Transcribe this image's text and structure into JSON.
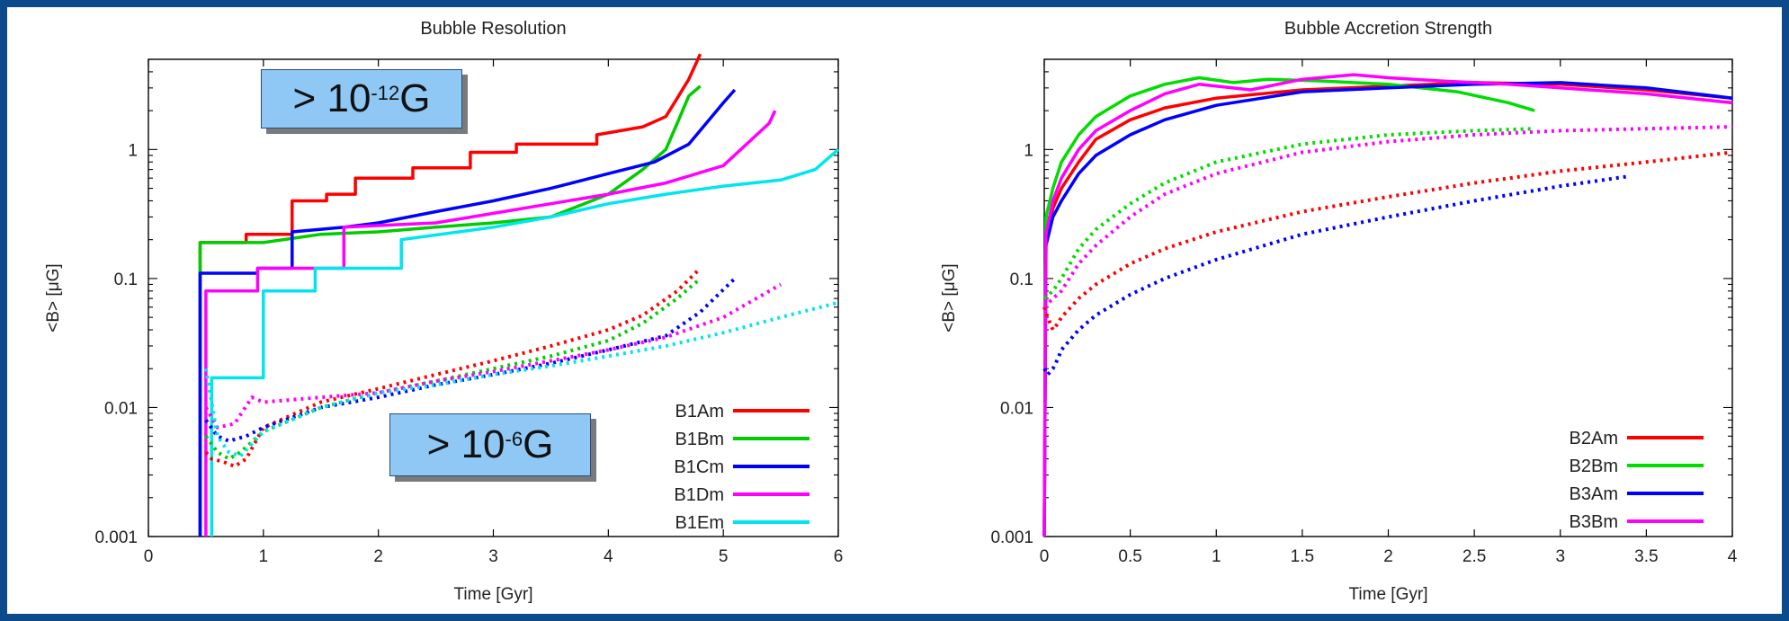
{
  "chart_data": [
    {
      "type": "line",
      "title": "Bubble Resolution",
      "xlabel": "Time [Gyr]",
      "ylabel": "<B> [μG]",
      "xlim": [
        0,
        6
      ],
      "ylim": [
        0.001,
        5
      ],
      "yscale": "log",
      "x_ticks": [
        0,
        1,
        2,
        3,
        4,
        5,
        6
      ],
      "y_ticks": [
        0.001,
        0.01,
        0.1,
        1
      ],
      "x_tick_labels": [
        "0",
        "1",
        "2",
        "3",
        "4",
        "5",
        "6"
      ],
      "y_tick_labels": [
        "0.001",
        "0.01",
        "0.1",
        "1"
      ],
      "legend_position": "bottom-right",
      "series": [
        {
          "name": "B1Am",
          "color": "#ff0000",
          "style": "solid",
          "x": [
            0.45,
            0.45,
            0.85,
            0.85,
            1.25,
            1.25,
            1.55,
            1.55,
            1.8,
            1.8,
            2.3,
            2.3,
            2.8,
            2.8,
            3.2,
            3.2,
            3.9,
            3.9,
            4.3,
            4.5,
            4.6,
            4.7,
            4.8
          ],
          "y": [
            0.0008,
            0.19,
            0.19,
            0.22,
            0.22,
            0.4,
            0.4,
            0.45,
            0.45,
            0.6,
            0.6,
            0.72,
            0.72,
            0.95,
            0.95,
            1.1,
            1.1,
            1.3,
            1.5,
            1.8,
            2.5,
            3.5,
            5.5
          ]
        },
        {
          "name": "B1Bm",
          "color": "#00cc00",
          "style": "solid",
          "x": [
            0.45,
            0.45,
            1.0,
            1.5,
            2.0,
            2.5,
            3.0,
            3.5,
            4.0,
            4.3,
            4.5,
            4.6,
            4.7,
            4.8
          ],
          "y": [
            0.0008,
            0.19,
            0.19,
            0.22,
            0.23,
            0.25,
            0.27,
            0.3,
            0.45,
            0.7,
            1.0,
            1.6,
            2.6,
            3.1
          ]
        },
        {
          "name": "B1Cm",
          "color": "#0000ff",
          "style": "solid",
          "x": [
            0.45,
            0.45,
            0.95,
            0.95,
            1.25,
            1.25,
            1.7,
            2.0,
            2.5,
            3.0,
            3.5,
            4.0,
            4.4,
            4.7,
            5.0,
            5.1
          ],
          "y": [
            0.0008,
            0.11,
            0.11,
            0.12,
            0.12,
            0.23,
            0.25,
            0.27,
            0.33,
            0.4,
            0.5,
            0.65,
            0.8,
            1.1,
            2.3,
            2.9
          ]
        },
        {
          "name": "B1Dm",
          "color": "#ff00ff",
          "style": "solid",
          "x": [
            0.5,
            0.5,
            0.95,
            0.95,
            1.25,
            1.25,
            1.7,
            1.7,
            2.5,
            3.0,
            3.5,
            4.0,
            4.5,
            5.0,
            5.4,
            5.45
          ],
          "y": [
            0.0008,
            0.08,
            0.08,
            0.12,
            0.12,
            0.12,
            0.12,
            0.25,
            0.27,
            0.32,
            0.38,
            0.45,
            0.55,
            0.75,
            1.6,
            2.0
          ]
        },
        {
          "name": "B1Em",
          "color": "#00e5ee",
          "style": "solid",
          "x": [
            0.55,
            0.55,
            1.0,
            1.0,
            1.45,
            1.45,
            2.2,
            2.2,
            3.0,
            3.5,
            4.0,
            4.5,
            5.0,
            5.5,
            5.8,
            6.0
          ],
          "y": [
            0.0008,
            0.017,
            0.017,
            0.08,
            0.08,
            0.12,
            0.12,
            0.2,
            0.25,
            0.3,
            0.38,
            0.45,
            0.52,
            0.58,
            0.7,
            1.0
          ]
        },
        {
          "name": "",
          "color": "#ff0000",
          "style": "dotted",
          "x": [
            0.5,
            0.55,
            0.65,
            0.75,
            0.85,
            1.0,
            1.5,
            2.0,
            2.5,
            3.0,
            3.5,
            4.0,
            4.3,
            4.6,
            4.8
          ],
          "y": [
            0.0045,
            0.004,
            0.0038,
            0.0035,
            0.004,
            0.007,
            0.011,
            0.014,
            0.018,
            0.023,
            0.03,
            0.04,
            0.052,
            0.08,
            0.12
          ]
        },
        {
          "name": "",
          "color": "#00cc00",
          "style": "dotted",
          "x": [
            0.5,
            0.6,
            0.7,
            0.8,
            1.0,
            1.5,
            2.0,
            2.5,
            3.0,
            3.5,
            4.0,
            4.3,
            4.6,
            4.8
          ],
          "y": [
            0.006,
            0.0045,
            0.004,
            0.0045,
            0.0065,
            0.01,
            0.013,
            0.016,
            0.02,
            0.025,
            0.033,
            0.045,
            0.07,
            0.1
          ]
        },
        {
          "name": "",
          "color": "#0000ff",
          "style": "dotted",
          "x": [
            0.5,
            0.6,
            0.7,
            0.85,
            1.0,
            1.5,
            2.0,
            2.5,
            3.0,
            3.5,
            4.0,
            4.5,
            4.8,
            5.1
          ],
          "y": [
            0.008,
            0.006,
            0.0055,
            0.006,
            0.007,
            0.01,
            0.012,
            0.015,
            0.018,
            0.022,
            0.028,
            0.036,
            0.055,
            0.1
          ]
        },
        {
          "name": "",
          "color": "#ff00ff",
          "style": "dotted",
          "x": [
            0.5,
            0.6,
            0.75,
            0.9,
            1.0,
            1.5,
            2.0,
            2.5,
            3.0,
            3.5,
            4.0,
            4.5,
            5.0,
            5.5
          ],
          "y": [
            0.01,
            0.007,
            0.0075,
            0.012,
            0.011,
            0.012,
            0.013,
            0.016,
            0.019,
            0.023,
            0.028,
            0.035,
            0.05,
            0.09
          ]
        },
        {
          "name": "",
          "color": "#00e5ee",
          "style": "dotted",
          "x": [
            0.5,
            0.6,
            0.7,
            0.8,
            1.0,
            1.5,
            2.0,
            2.5,
            3.0,
            3.5,
            4.0,
            4.5,
            5.0,
            5.5,
            6.0
          ],
          "y": [
            0.02,
            0.006,
            0.0045,
            0.0042,
            0.0065,
            0.01,
            0.013,
            0.015,
            0.018,
            0.021,
            0.025,
            0.03,
            0.038,
            0.05,
            0.065
          ]
        }
      ]
    },
    {
      "type": "line",
      "title": "Bubble Accretion Strength",
      "xlabel": "Time [Gyr]",
      "ylabel": "<B> [μG]",
      "xlim": [
        0,
        4
      ],
      "ylim": [
        0.001,
        5
      ],
      "yscale": "log",
      "x_ticks": [
        0,
        0.5,
        1,
        1.5,
        2,
        2.5,
        3,
        3.5,
        4
      ],
      "y_ticks": [
        0.001,
        0.01,
        0.1,
        1
      ],
      "x_tick_labels": [
        "0",
        "0.5",
        "1",
        "1.5",
        "2",
        "2.5",
        "3",
        "3.5",
        "4"
      ],
      "y_tick_labels": [
        "0.001",
        "0.01",
        "0.1",
        "1"
      ],
      "legend_position": "bottom-right",
      "series": [
        {
          "name": "B2Am",
          "color": "#ff0000",
          "style": "solid",
          "x": [
            0.0,
            0.01,
            0.05,
            0.1,
            0.2,
            0.3,
            0.5,
            0.7,
            1.0,
            1.5,
            2.0,
            2.5,
            3.0,
            3.5,
            4.0
          ],
          "y": [
            0.001,
            0.2,
            0.35,
            0.5,
            0.8,
            1.2,
            1.7,
            2.1,
            2.5,
            2.9,
            3.1,
            3.3,
            3.2,
            2.9,
            2.5
          ]
        },
        {
          "name": "B2Bm",
          "color": "#00dd00",
          "style": "solid",
          "x": [
            0.0,
            0.01,
            0.05,
            0.1,
            0.2,
            0.3,
            0.5,
            0.7,
            0.9,
            1.1,
            1.3,
            1.6,
            2.0,
            2.4,
            2.7,
            2.85
          ],
          "y": [
            0.001,
            0.3,
            0.5,
            0.8,
            1.3,
            1.8,
            2.6,
            3.2,
            3.6,
            3.3,
            3.5,
            3.4,
            3.2,
            2.8,
            2.3,
            2.0
          ]
        },
        {
          "name": "B3Am",
          "color": "#0000ff",
          "style": "solid",
          "x": [
            0.0,
            0.01,
            0.05,
            0.1,
            0.2,
            0.3,
            0.5,
            0.7,
            1.0,
            1.5,
            2.0,
            2.5,
            3.0,
            3.5,
            4.0
          ],
          "y": [
            0.001,
            0.18,
            0.3,
            0.4,
            0.65,
            0.9,
            1.3,
            1.7,
            2.2,
            2.8,
            3.0,
            3.2,
            3.3,
            3.0,
            2.5
          ]
        },
        {
          "name": "B3Bm",
          "color": "#ff00ff",
          "style": "solid",
          "x": [
            0.0,
            0.01,
            0.05,
            0.1,
            0.2,
            0.3,
            0.5,
            0.7,
            0.9,
            1.2,
            1.5,
            1.8,
            2.0,
            2.3,
            2.7,
            3.0,
            3.5,
            4.0
          ],
          "y": [
            0.001,
            0.22,
            0.4,
            0.6,
            1.0,
            1.4,
            2.0,
            2.7,
            3.2,
            2.9,
            3.5,
            3.8,
            3.6,
            3.4,
            3.2,
            3.0,
            2.7,
            2.3
          ]
        },
        {
          "name": "",
          "color": "#ff0000",
          "style": "dotted",
          "x": [
            0.0,
            0.02,
            0.05,
            0.08,
            0.1,
            0.2,
            0.3,
            0.5,
            0.7,
            1.0,
            1.5,
            2.0,
            2.5,
            3.0,
            3.5,
            4.0
          ],
          "y": [
            0.06,
            0.05,
            0.04,
            0.045,
            0.05,
            0.07,
            0.09,
            0.13,
            0.17,
            0.23,
            0.33,
            0.43,
            0.55,
            0.68,
            0.8,
            0.95
          ]
        },
        {
          "name": "",
          "color": "#00dd00",
          "style": "dotted",
          "x": [
            0.0,
            0.05,
            0.1,
            0.2,
            0.3,
            0.5,
            0.7,
            1.0,
            1.5,
            2.0,
            2.5,
            2.85
          ],
          "y": [
            0.07,
            0.08,
            0.1,
            0.17,
            0.24,
            0.38,
            0.55,
            0.8,
            1.1,
            1.3,
            1.4,
            1.45
          ]
        },
        {
          "name": "",
          "color": "#0000ff",
          "style": "dotted",
          "x": [
            0.0,
            0.02,
            0.05,
            0.08,
            0.1,
            0.2,
            0.3,
            0.5,
            0.7,
            1.0,
            1.5,
            2.0,
            2.5,
            3.0,
            3.4
          ],
          "y": [
            0.02,
            0.018,
            0.02,
            0.024,
            0.028,
            0.04,
            0.052,
            0.075,
            0.1,
            0.14,
            0.22,
            0.3,
            0.4,
            0.52,
            0.62
          ]
        },
        {
          "name": "",
          "color": "#ff00ff",
          "style": "dotted",
          "x": [
            0.0,
            0.05,
            0.1,
            0.2,
            0.3,
            0.5,
            0.7,
            1.0,
            1.5,
            2.0,
            2.5,
            3.0,
            3.5,
            4.0
          ],
          "y": [
            0.06,
            0.07,
            0.08,
            0.13,
            0.18,
            0.3,
            0.45,
            0.65,
            0.95,
            1.15,
            1.3,
            1.4,
            1.45,
            1.5
          ]
        }
      ]
    }
  ],
  "callouts": [
    {
      "text": "> 10",
      "sup": "-12",
      "unit": " G"
    },
    {
      "text": "> 10",
      "sup": "-6",
      "unit": " G"
    }
  ]
}
